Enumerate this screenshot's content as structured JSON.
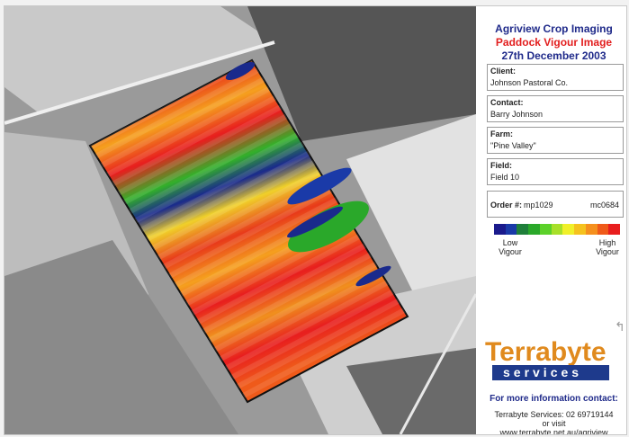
{
  "header": {
    "line1": "Agriview Crop Imaging",
    "line2": "Paddock Vigour Image",
    "line3": "27th December 2003"
  },
  "fields": {
    "client_label": "Client:",
    "client_value": "Johnson Pastoral Co.",
    "contact_label": "Contact:",
    "contact_value": "Barry Johnson",
    "farm_label": "Farm:",
    "farm_value": "\"Pine Valley\"",
    "field_label": "Field:",
    "field_value": "Field 10",
    "order_label": "Order #:",
    "order_value": "mp1029",
    "order_value2": "mc0684"
  },
  "legend": {
    "low_line1": "Low",
    "low_line2": "Vigour",
    "high_line1": "High",
    "high_line2": "Vigour",
    "colors": [
      "#1a1a8c",
      "#1a3aa8",
      "#1f7f3a",
      "#2aa82a",
      "#5cd12a",
      "#a8e02a",
      "#f0f02a",
      "#f5c21e",
      "#f5901e",
      "#ef5a1a",
      "#e81e1e"
    ]
  },
  "logo": {
    "top": "Terrabyte",
    "bottom": "services"
  },
  "contact_info": {
    "heading": "For more information contact:",
    "line1": "Terrabyte Services: 02 69719144",
    "line2": "or visit",
    "line3": "www.terrabyte.net.au/agriview"
  }
}
